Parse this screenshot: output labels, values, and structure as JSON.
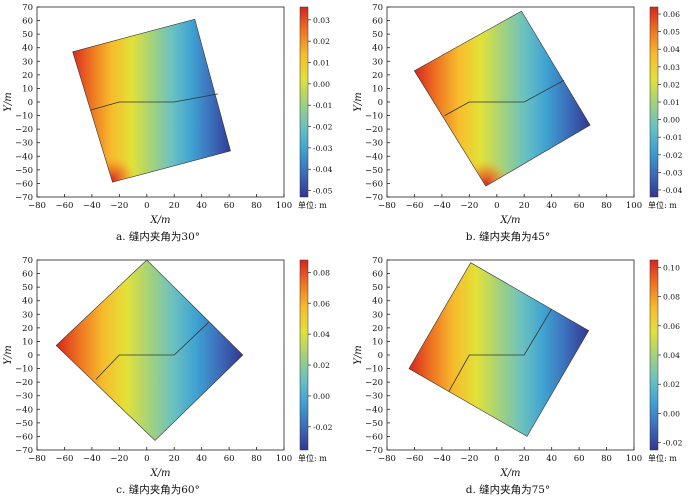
{
  "chart_data": [
    {
      "type": "heatmap",
      "caption": "a. 缝内夹角为30°",
      "xlabel": "X/m",
      "ylabel": "Y/m",
      "xlim": [
        -80,
        100
      ],
      "ylim": [
        -70,
        70
      ],
      "xticks": [
        -80,
        -60,
        -40,
        -20,
        0,
        20,
        40,
        60,
        80,
        100
      ],
      "yticks": [
        -70,
        -60,
        -50,
        -40,
        -30,
        -20,
        -10,
        0,
        10,
        20,
        30,
        40,
        50,
        60,
        70
      ],
      "colorbar": {
        "ticks": [
          -0.05,
          -0.04,
          -0.03,
          -0.02,
          -0.01,
          0.0,
          0.01,
          0.02,
          0.03
        ],
        "tick_labels": [
          "-0.05",
          "-0.04",
          "-0.03",
          "-0.02",
          "-0.01",
          "0.00",
          "0.01",
          "0.02",
          "0.03"
        ],
        "range": [
          -0.053,
          0.036
        ],
        "unit_label": "单位: m"
      },
      "domain_polygon": [
        [
          -54,
          37
        ],
        [
          35,
          61
        ],
        [
          61,
          -36
        ],
        [
          -25,
          -59
        ]
      ],
      "fracture_polyline": [
        [
          -41,
          -6
        ],
        [
          -20,
          0
        ],
        [
          20,
          0
        ],
        [
          52,
          6
        ]
      ],
      "field_extent_x": [
        -55,
        62
      ],
      "hotspot": {
        "x": -25,
        "y": -57
      }
    },
    {
      "type": "heatmap",
      "caption": "b. 缝内夹角为45°",
      "xlabel": "X/m",
      "ylabel": "Y/m",
      "xlim": [
        -80,
        100
      ],
      "ylim": [
        -70,
        70
      ],
      "xticks": [
        -80,
        -60,
        -40,
        -20,
        0,
        20,
        40,
        60,
        80,
        100
      ],
      "yticks": [
        -70,
        -60,
        -50,
        -40,
        -30,
        -20,
        -10,
        0,
        10,
        20,
        30,
        40,
        50,
        60,
        70
      ],
      "colorbar": {
        "ticks": [
          -0.04,
          -0.03,
          -0.02,
          -0.01,
          0.0,
          0.01,
          0.02,
          0.03,
          0.04,
          0.05,
          0.06
        ],
        "tick_labels": [
          "-0.04",
          "-0.03",
          "-0.02",
          "-0.01",
          "0.00",
          "0.01",
          "0.02",
          "0.03",
          "0.04",
          "0.05",
          "0.06"
        ],
        "range": [
          -0.044,
          0.064
        ],
        "unit_label": "单位: m"
      },
      "domain_polygon": [
        [
          -60,
          23
        ],
        [
          18,
          67
        ],
        [
          68,
          -17
        ],
        [
          -8,
          -62
        ]
      ],
      "fracture_polyline": [
        [
          -38,
          -10
        ],
        [
          -20,
          0
        ],
        [
          20,
          0
        ],
        [
          49,
          16
        ]
      ],
      "field_extent_x": [
        -60,
        68
      ],
      "hotspot": {
        "x": -8,
        "y": -60
      }
    },
    {
      "type": "heatmap",
      "caption": "c. 缝内夹角为60°",
      "xlabel": "X/m",
      "ylabel": "Y/m",
      "xlim": [
        -80,
        100
      ],
      "ylim": [
        -70,
        70
      ],
      "xticks": [
        -80,
        -60,
        -40,
        -20,
        0,
        20,
        40,
        60,
        80,
        100
      ],
      "yticks": [
        -70,
        -60,
        -50,
        -40,
        -30,
        -20,
        -10,
        0,
        10,
        20,
        30,
        40,
        50,
        60,
        70
      ],
      "colorbar": {
        "ticks": [
          -0.02,
          0.0,
          0.02,
          0.04,
          0.06,
          0.08
        ],
        "tick_labels": [
          "-0.02",
          "0.00",
          "0.02",
          "0.04",
          "0.06",
          "0.08"
        ],
        "range": [
          -0.035,
          0.088
        ],
        "unit_label": "单位: m"
      },
      "domain_polygon": [
        [
          -66,
          7
        ],
        [
          0,
          70
        ],
        [
          70,
          0
        ],
        [
          6,
          -63
        ]
      ],
      "fracture_polyline": [
        [
          -37,
          -18
        ],
        [
          -20,
          0
        ],
        [
          20,
          0
        ],
        [
          45,
          24
        ]
      ],
      "field_extent_x": [
        -66,
        70
      ],
      "hotspot": null
    },
    {
      "type": "heatmap",
      "caption": "d. 缝内夹角为75°",
      "xlabel": "X/m",
      "ylabel": "Y/m",
      "xlim": [
        -80,
        100
      ],
      "ylim": [
        -70,
        70
      ],
      "xticks": [
        -80,
        -60,
        -40,
        -20,
        0,
        20,
        40,
        60,
        80,
        100
      ],
      "yticks": [
        -70,
        -60,
        -50,
        -40,
        -30,
        -20,
        -10,
        0,
        10,
        20,
        30,
        40,
        50,
        60,
        70
      ],
      "colorbar": {
        "ticks": [
          -0.02,
          0.0,
          0.02,
          0.04,
          0.06,
          0.08,
          0.1
        ],
        "tick_labels": [
          "-0.02",
          "0.00",
          "0.02",
          "0.04",
          "0.06",
          "0.08",
          "0.10"
        ],
        "range": [
          -0.025,
          0.105
        ],
        "unit_label": "单位: m"
      },
      "domain_polygon": [
        [
          -64,
          -10
        ],
        [
          -19,
          68
        ],
        [
          67,
          18
        ],
        [
          22,
          -60
        ]
      ],
      "fracture_polyline": [
        [
          -35,
          -27
        ],
        [
          -20,
          0
        ],
        [
          20,
          0
        ],
        [
          40,
          34
        ]
      ],
      "field_extent_x": [
        -64,
        67
      ],
      "hotspot": null
    }
  ]
}
